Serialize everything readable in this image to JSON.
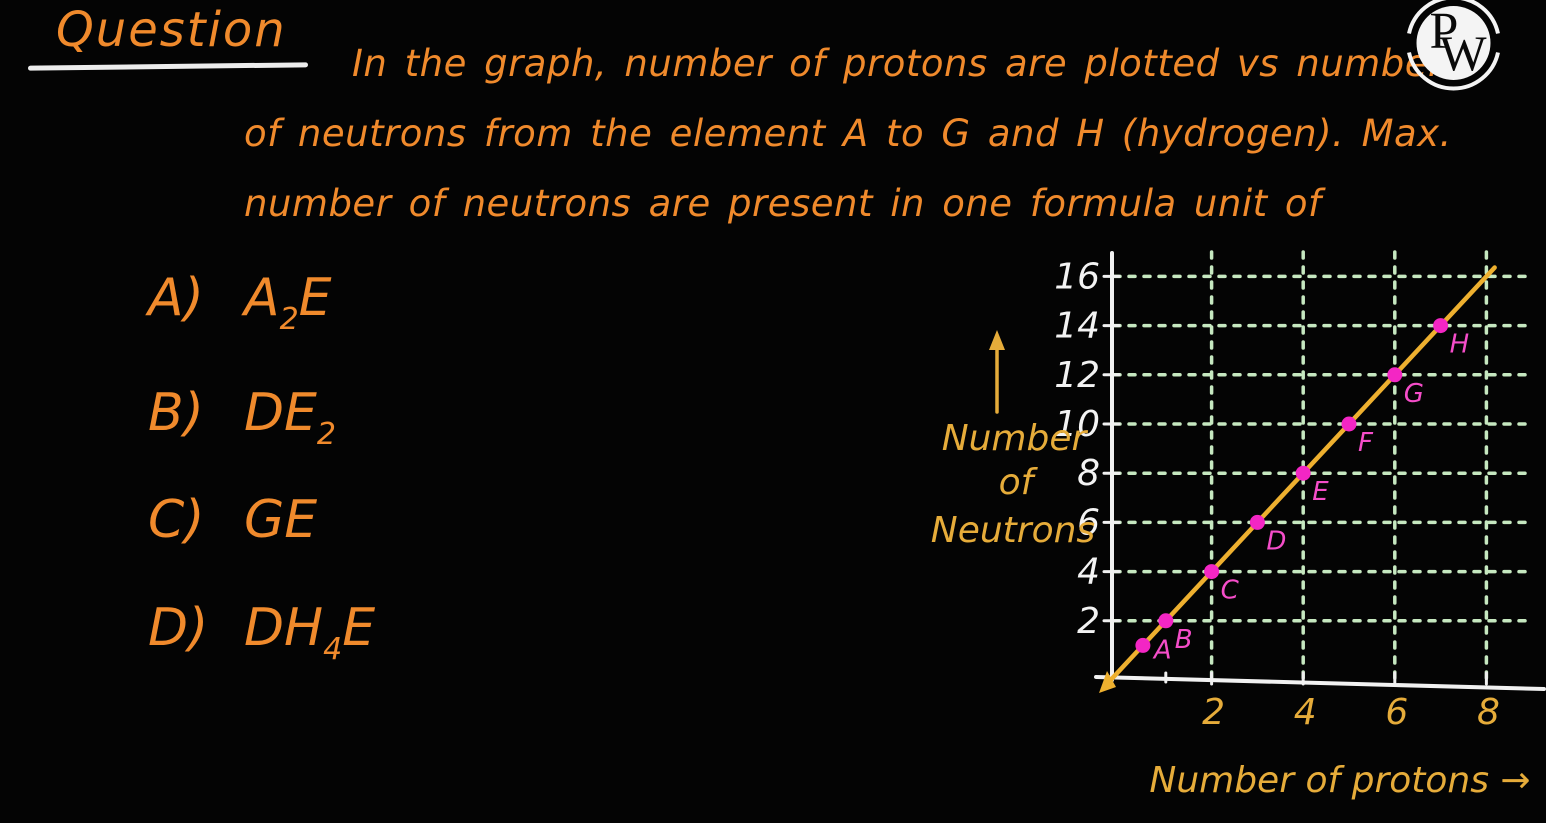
{
  "heading": {
    "label": "Question"
  },
  "logo": {
    "p": "P",
    "w": "W"
  },
  "question": {
    "lines": [
      "In the graph, number of protons are plotted vs number",
      "of neutrons from the element A to G and H (hydrogen). Max.",
      "number of neutrons are present in one formula unit of"
    ]
  },
  "options": [
    {
      "label": "A)",
      "pre": "A",
      "sub": "2",
      "post": "E"
    },
    {
      "label": "B)",
      "pre": "DE",
      "sub": "2",
      "post": ""
    },
    {
      "label": "C)",
      "pre": "GE",
      "sub": "",
      "post": ""
    },
    {
      "label": "D)",
      "pre": "DH",
      "sub": "4",
      "post": "E"
    }
  ],
  "chart_data": {
    "type": "scatter",
    "title": "",
    "xlabel": "Number of protons",
    "xlabel_arrow": "→",
    "ylabel": "Number of Neutrons",
    "ylabel_lines": [
      "Number",
      "of",
      "Neutrons"
    ],
    "x_ticks": [
      2,
      4,
      6,
      8
    ],
    "y_ticks": [
      2,
      4,
      6,
      8,
      10,
      12,
      14,
      16
    ],
    "xlim": [
      0,
      9
    ],
    "ylim": [
      0,
      17
    ],
    "grid": "dashed",
    "legend": "none",
    "line": {
      "equation": "neutrons = 2 x protons",
      "slope": 2,
      "intercept": 0,
      "x_start": -0.25,
      "x_end": 8.18
    },
    "points": [
      {
        "label": "A",
        "protons": 0.5,
        "neutrons": 1
      },
      {
        "label": "B",
        "protons": 1,
        "neutrons": 2
      },
      {
        "label": "C",
        "protons": 2,
        "neutrons": 4
      },
      {
        "label": "D",
        "protons": 3,
        "neutrons": 6
      },
      {
        "label": "E",
        "protons": 4,
        "neutrons": 8
      },
      {
        "label": "F",
        "protons": 5,
        "neutrons": 10
      },
      {
        "label": "G",
        "protons": 6,
        "neutrons": 12
      },
      {
        "label": "H",
        "protons": 7,
        "neutrons": 14
      }
    ]
  },
  "colors": {
    "background": "#040404",
    "ink_orange": "#f08a2c",
    "ink_gold": "#e6ac3a",
    "ink_white": "#f1f1f1",
    "grid_green": "#c6e8c0",
    "point_magenta": "#f326c4",
    "line_gold": "#eeb02f"
  }
}
